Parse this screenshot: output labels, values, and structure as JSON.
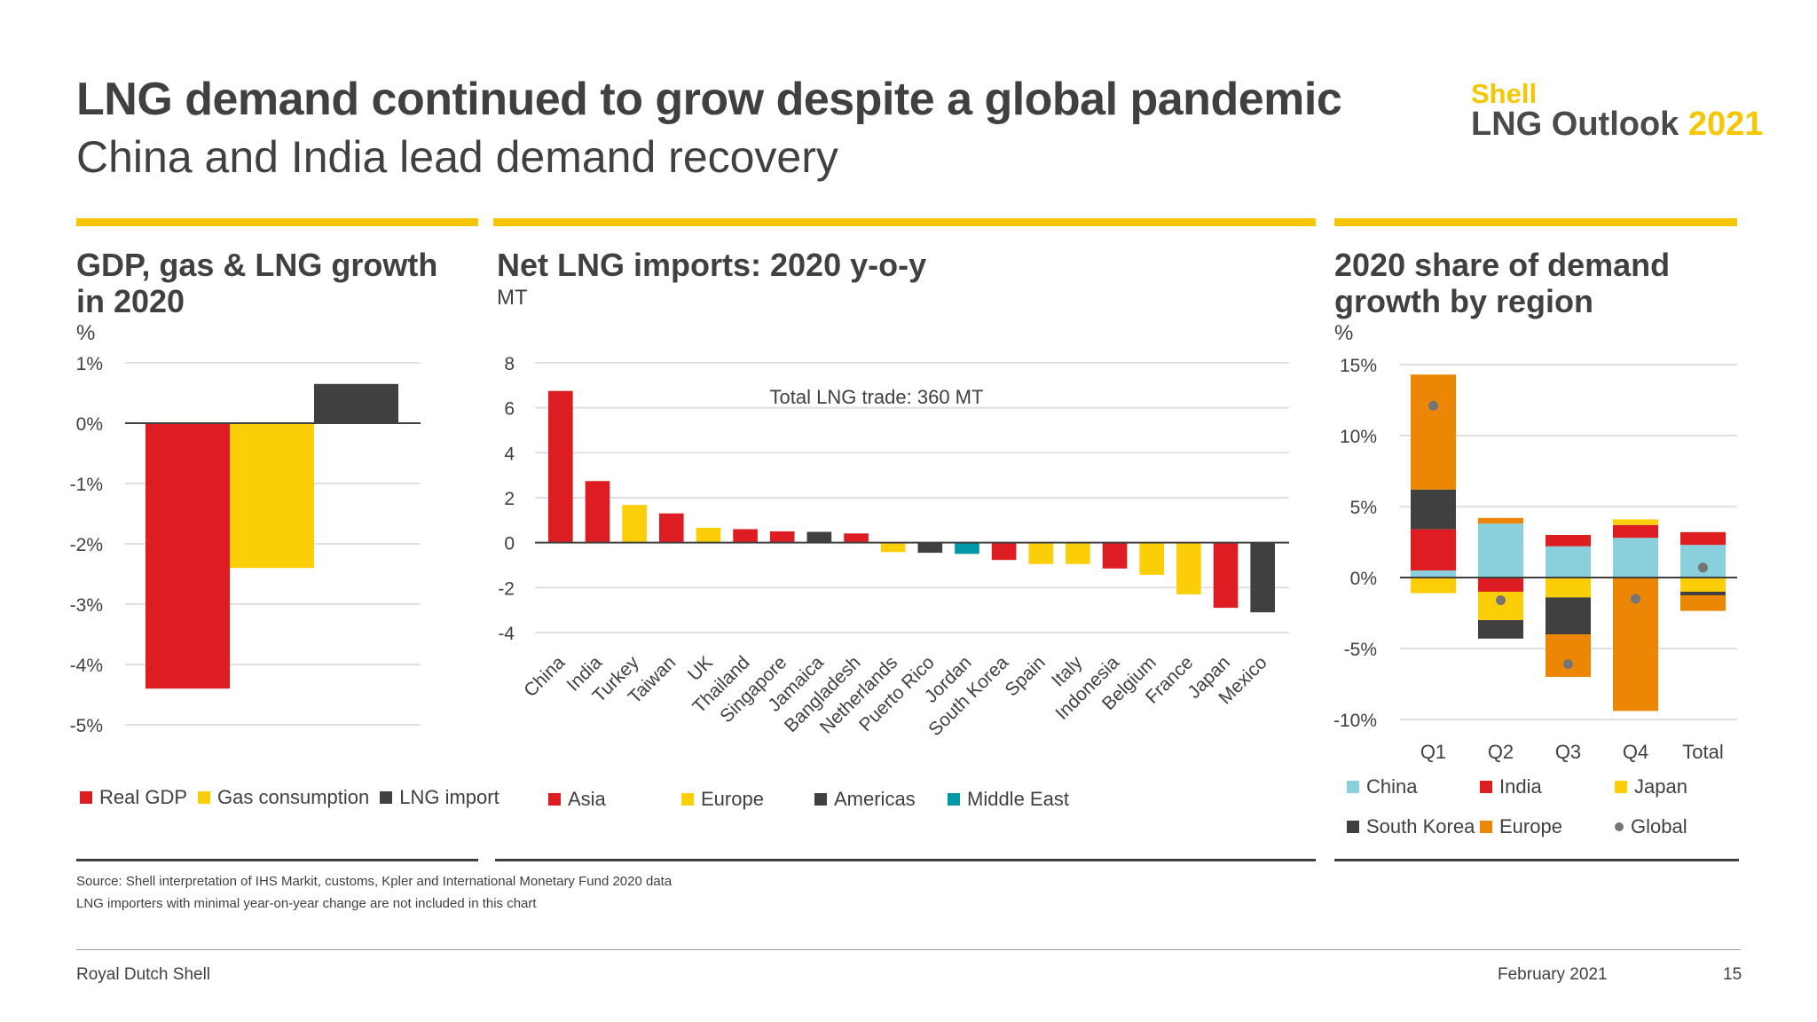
{
  "header": {
    "title": "LNG demand continued to grow despite a global pandemic",
    "subtitle": "China and India lead demand recovery",
    "logo": {
      "brand": "Shell",
      "product": "LNG Outlook",
      "year": "2021"
    }
  },
  "colors": {
    "accent": "#f6c600",
    "red": "#dd1d21",
    "yellow": "#fbce07",
    "dark": "#404040",
    "teal": "#0097a9",
    "lightblue": "#89cfdc",
    "orange": "#eb8705",
    "global": "#757575"
  },
  "chart_data": [
    {
      "type": "bar",
      "title": "GDP, gas & LNG growth in 2020",
      "ylabel": "%",
      "ylim": [
        -5,
        1
      ],
      "ticks": [
        "1%",
        "0%",
        "-1%",
        "-2%",
        "-3%",
        "-4%",
        "-5%"
      ],
      "tick_values": [
        1,
        0,
        -1,
        -2,
        -3,
        -4,
        -5
      ],
      "categories": [
        "Real GDP",
        "Gas consumption",
        "LNG import"
      ],
      "values": [
        -4.4,
        -2.4,
        0.65
      ],
      "legend": [
        "Real GDP",
        "Gas consumption",
        "LNG import"
      ],
      "legend_placement": "bottom",
      "grid": true
    },
    {
      "type": "bar",
      "title": "Net LNG imports: 2020 y-o-y",
      "ylabel": "MT",
      "ylim": [
        -4,
        8
      ],
      "ticks": [
        "8",
        "6",
        "4",
        "2",
        "0",
        "-2",
        "-4"
      ],
      "tick_values": [
        8,
        6,
        4,
        2,
        0,
        -2,
        -4
      ],
      "annotation": "Total LNG trade: 360 MT",
      "categories": [
        "China",
        "India",
        "Turkey",
        "Taiwan",
        "UK",
        "Thailand",
        "Singapore",
        "Jamaica",
        "Bangladesh",
        "Netherlands",
        "Puerto Rico",
        "Jordan",
        "South Korea",
        "Spain",
        "Italy",
        "Indonesia",
        "Belgium",
        "France",
        "Japan",
        "Mexico"
      ],
      "values": [
        6.75,
        2.74,
        1.68,
        1.3,
        0.66,
        0.6,
        0.5,
        0.48,
        0.41,
        -0.42,
        -0.45,
        -0.5,
        -0.77,
        -0.95,
        -0.95,
        -1.15,
        -1.43,
        -2.3,
        -2.9,
        -3.1
      ],
      "regions": [
        "Asia",
        "Asia",
        "Europe",
        "Asia",
        "Europe",
        "Asia",
        "Asia",
        "Americas",
        "Asia",
        "Europe",
        "Americas",
        "Middle East",
        "Asia",
        "Europe",
        "Europe",
        "Asia",
        "Europe",
        "Europe",
        "Asia",
        "Americas"
      ],
      "legend": [
        "Asia",
        "Europe",
        "Americas",
        "Middle East"
      ],
      "legend_placement": "bottom",
      "grid": true
    },
    {
      "type": "bar",
      "stacked": true,
      "title": "2020 share of demand growth by region",
      "ylabel": "%",
      "ylim": [
        -10,
        15
      ],
      "ticks": [
        "15%",
        "10%",
        "5%",
        "0%",
        "-5%",
        "-10%"
      ],
      "tick_values": [
        15,
        10,
        5,
        0,
        -5,
        -10
      ],
      "categories": [
        "Q1",
        "Q2",
        "Q3",
        "Q4",
        "Total"
      ],
      "series": [
        {
          "name": "China",
          "values": [
            0.5,
            3.8,
            2.2,
            2.8,
            2.3
          ]
        },
        {
          "name": "India",
          "values": [
            2.9,
            -1.0,
            0.8,
            0.9,
            0.9
          ]
        },
        {
          "name": "Japan",
          "values": [
            -1.1,
            -2.0,
            -1.4,
            0.4,
            -1.0
          ]
        },
        {
          "name": "South Korea",
          "values": [
            2.8,
            -1.3,
            -2.6,
            0,
            -0.25
          ]
        },
        {
          "name": "Europe",
          "values": [
            8.1,
            0.4,
            -3.0,
            -9.4,
            -1.1
          ]
        }
      ],
      "global": {
        "name": "Global",
        "values": [
          12.1,
          -1.6,
          -6.1,
          -1.5,
          0.7
        ]
      },
      "legend_placement": "bottom",
      "grid": true
    }
  ],
  "units": {
    "p1": "%",
    "p2": "MT",
    "p3": "%"
  },
  "source": [
    "Source: Shell interpretation of IHS Markit, customs, Kpler and International Monetary Fund 2020 data",
    "LNG importers with minimal year-on-year change are not included in this chart"
  ],
  "footer": {
    "company": "Royal Dutch Shell",
    "date": "February 2021",
    "page": "15"
  }
}
